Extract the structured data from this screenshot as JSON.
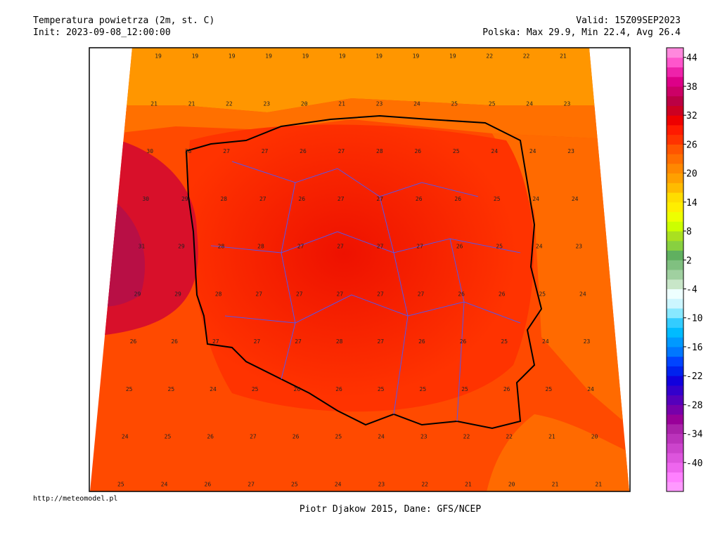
{
  "header": {
    "title": "Temperatura powietrza (2m, st. C)",
    "init": "Init: 2023-09-08_12:00:00",
    "valid": "Valid: 15Z09SEP2023",
    "stats": "Polska: Max 29.9, Min 22.4, Avg 26.4"
  },
  "footer": {
    "url": "http://meteomodel.pl",
    "credit": "Piotr Djakow 2015, Dane: GFS/NCEP"
  },
  "colorbar": {
    "lim": [
      -46,
      46
    ],
    "ticks": [
      44,
      38,
      32,
      26,
      20,
      14,
      8,
      2,
      -4,
      -10,
      -16,
      -22,
      -28,
      -34,
      -40
    ],
    "colors": [
      "#ff99ff",
      "#ff80ff",
      "#ee66ee",
      "#dd55dd",
      "#cc44cc",
      "#bb33bb",
      "#aa22aa",
      "#990099",
      "#7700aa",
      "#5500bb",
      "#3300cc",
      "#1100dd",
      "#0022ee",
      "#0044ff",
      "#0077ff",
      "#0099ff",
      "#00bbff",
      "#33ccff",
      "#88e8ff",
      "#ccf6ff",
      "#eeffff",
      "#c8e6c8",
      "#a0d0a0",
      "#80c080",
      "#60b060",
      "#88d040",
      "#aae020",
      "#ccff00",
      "#eeff00",
      "#ffee00",
      "#ffdd00",
      "#ffbb00",
      "#ffa000",
      "#ff8800",
      "#ff6e00",
      "#ff5500",
      "#ff3300",
      "#ff1a00",
      "#ee0000",
      "#cc0022",
      "#bb0044",
      "#cc0066",
      "#dd0088",
      "#ee22aa",
      "#ff55cc",
      "#ff88dd"
    ]
  },
  "map": {
    "rows": [
      [
        19,
        19,
        19,
        19,
        19,
        19,
        19,
        19,
        19,
        22,
        22,
        21
      ],
      [
        21,
        21,
        22,
        23,
        20,
        21,
        23,
        24,
        25,
        25,
        24,
        23
      ],
      [
        30,
        28,
        27,
        27,
        26,
        27,
        28,
        26,
        25,
        24,
        24,
        23
      ],
      [
        30,
        29,
        28,
        27,
        26,
        27,
        27,
        26,
        26,
        25,
        24,
        24
      ],
      [
        31,
        29,
        28,
        28,
        27,
        27,
        27,
        27,
        26,
        25,
        24,
        23
      ],
      [
        29,
        29,
        28,
        27,
        27,
        27,
        27,
        27,
        26,
        26,
        25,
        24
      ],
      [
        26,
        26,
        27,
        27,
        27,
        28,
        27,
        26,
        26,
        25,
        24,
        23
      ],
      [
        25,
        25,
        24,
        25,
        26,
        26,
        25,
        25,
        25,
        26,
        25,
        24
      ],
      [
        24,
        25,
        26,
        27,
        26,
        25,
        24,
        23,
        22,
        22,
        21,
        20
      ],
      [
        25,
        24,
        26,
        27,
        25,
        24,
        23,
        22,
        21,
        20,
        21,
        21
      ]
    ]
  }
}
